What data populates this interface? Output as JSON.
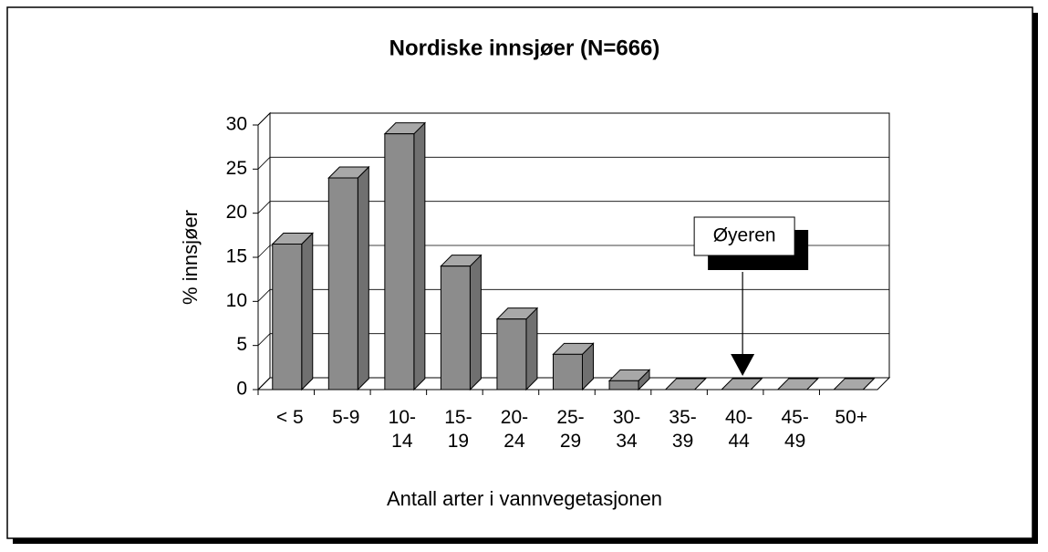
{
  "chart_data": {
    "type": "bar3d",
    "title": "Nordiske innsjøer (N=666)",
    "x_label": "Antall arter i vannvegetasjonen",
    "y_label": "% innsjøer",
    "categories": [
      "< 5",
      "5-9",
      "10-\n14",
      "15-\n19",
      "20-\n24",
      "25-\n29",
      "30-\n34",
      "35-\n39",
      "40-\n44",
      "45-\n49",
      "50+"
    ],
    "values": [
      16.5,
      24,
      29,
      14,
      8,
      4,
      1,
      0,
      0,
      0,
      0
    ],
    "color": "#8c8c8c",
    "ylim": [
      0,
      30
    ],
    "yticks": [
      0,
      5,
      10,
      15,
      20,
      25,
      30
    ],
    "grid": true,
    "annotation": {
      "text": "Øyeren",
      "category": 8
    }
  }
}
